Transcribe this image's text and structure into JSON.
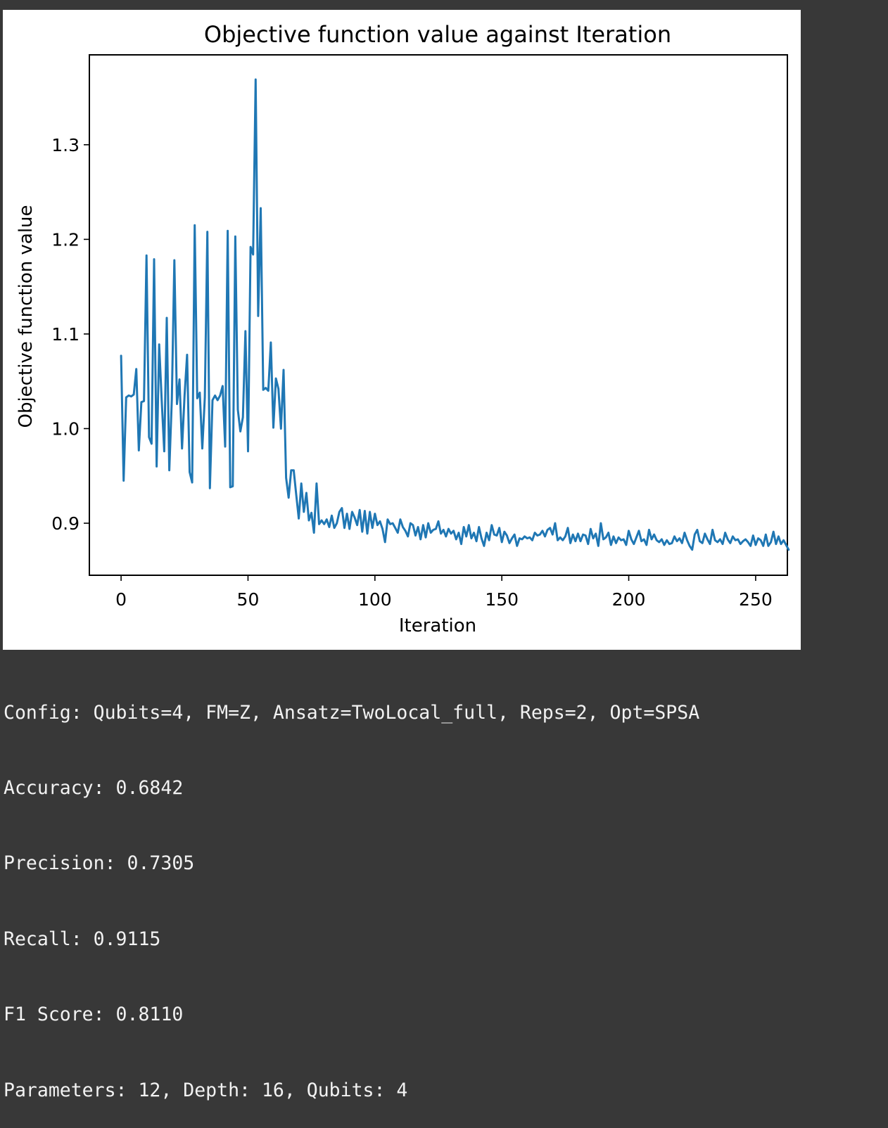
{
  "chart_data": {
    "type": "line",
    "title": "Objective function value against Iteration",
    "xlabel": "Iteration",
    "ylabel": "Objective function value",
    "xlim": [
      -12.5,
      262.5
    ],
    "ylim": [
      0.845,
      1.395
    ],
    "xticks": [
      0,
      50,
      100,
      150,
      200,
      250
    ],
    "xtick_labels": [
      "0",
      "50",
      "100",
      "150",
      "200",
      "250"
    ],
    "yticks": [
      0.9,
      1.0,
      1.1,
      1.2,
      1.3
    ],
    "ytick_labels": [
      "0.9",
      "1.0",
      "1.1",
      "1.2",
      "1.3"
    ],
    "grid": false,
    "series": [
      {
        "color": "#1f77b4",
        "x_start": 0,
        "x_step": 1,
        "values": [
          1.077,
          0.945,
          1.033,
          1.035,
          1.034,
          1.036,
          1.063,
          0.977,
          1.028,
          1.029,
          1.183,
          0.991,
          0.984,
          1.179,
          0.96,
          1.089,
          1.03,
          0.976,
          1.117,
          0.956,
          1.031,
          1.178,
          1.026,
          1.052,
          0.979,
          1.035,
          1.078,
          0.954,
          0.943,
          1.215,
          1.032,
          1.038,
          0.979,
          1.033,
          1.208,
          0.937,
          1.03,
          1.035,
          1.03,
          1.035,
          1.045,
          0.981,
          1.209,
          0.938,
          0.939,
          1.203,
          1.02,
          0.997,
          1.012,
          1.103,
          0.976,
          1.192,
          1.184,
          1.369,
          1.119,
          1.233,
          1.041,
          1.043,
          1.04,
          1.091,
          1.001,
          1.053,
          1.042,
          1.0,
          1.062,
          0.948,
          0.927,
          0.956,
          0.956,
          0.93,
          0.905,
          0.942,
          0.912,
          0.932,
          0.903,
          0.911,
          0.89,
          0.942,
          0.899,
          0.903,
          0.899,
          0.904,
          0.896,
          0.908,
          0.895,
          0.9,
          0.912,
          0.916,
          0.895,
          0.91,
          0.894,
          0.912,
          0.906,
          0.898,
          0.914,
          0.891,
          0.913,
          0.889,
          0.912,
          0.895,
          0.91,
          0.898,
          0.902,
          0.894,
          0.88,
          0.904,
          0.899,
          0.9,
          0.895,
          0.89,
          0.904,
          0.896,
          0.892,
          0.886,
          0.9,
          0.898,
          0.887,
          0.896,
          0.883,
          0.898,
          0.885,
          0.9,
          0.89,
          0.893,
          0.894,
          0.902,
          0.889,
          0.893,
          0.886,
          0.894,
          0.889,
          0.892,
          0.883,
          0.89,
          0.878,
          0.896,
          0.886,
          0.898,
          0.884,
          0.89,
          0.881,
          0.896,
          0.884,
          0.876,
          0.89,
          0.882,
          0.898,
          0.888,
          0.887,
          0.895,
          0.88,
          0.891,
          0.887,
          0.879,
          0.884,
          0.888,
          0.876,
          0.884,
          0.883,
          0.886,
          0.884,
          0.885,
          0.882,
          0.89,
          0.887,
          0.888,
          0.892,
          0.886,
          0.893,
          0.895,
          0.888,
          0.9,
          0.882,
          0.885,
          0.882,
          0.886,
          0.895,
          0.879,
          0.888,
          0.881,
          0.889,
          0.881,
          0.888,
          0.887,
          0.878,
          0.894,
          0.884,
          0.889,
          0.876,
          0.9,
          0.883,
          0.885,
          0.89,
          0.877,
          0.886,
          0.879,
          0.885,
          0.882,
          0.883,
          0.877,
          0.892,
          0.883,
          0.878,
          0.885,
          0.892,
          0.881,
          0.883,
          0.877,
          0.893,
          0.883,
          0.888,
          0.882,
          0.88,
          0.883,
          0.877,
          0.882,
          0.878,
          0.879,
          0.886,
          0.881,
          0.884,
          0.879,
          0.89,
          0.882,
          0.876,
          0.872,
          0.888,
          0.893,
          0.881,
          0.879,
          0.889,
          0.883,
          0.878,
          0.893,
          0.882,
          0.88,
          0.883,
          0.878,
          0.89,
          0.883,
          0.879,
          0.886,
          0.882,
          0.883,
          0.878,
          0.881,
          0.883,
          0.88,
          0.876,
          0.887,
          0.877,
          0.884,
          0.882,
          0.876,
          0.888,
          0.876,
          0.88,
          0.891,
          0.878,
          0.886,
          0.878,
          0.882,
          0.877,
          0.872
        ]
      }
    ]
  },
  "console": {
    "lines": [
      "Config: Qubits=4, FM=Z, Ansatz=TwoLocal_full, Reps=2, Opt=SPSA",
      "Accuracy: 0.6842",
      "Precision: 0.7305",
      "Recall: 0.9115",
      "F1 Score: 0.8110",
      "Parameters: 12, Depth: 16, Qubits: 4"
    ]
  }
}
